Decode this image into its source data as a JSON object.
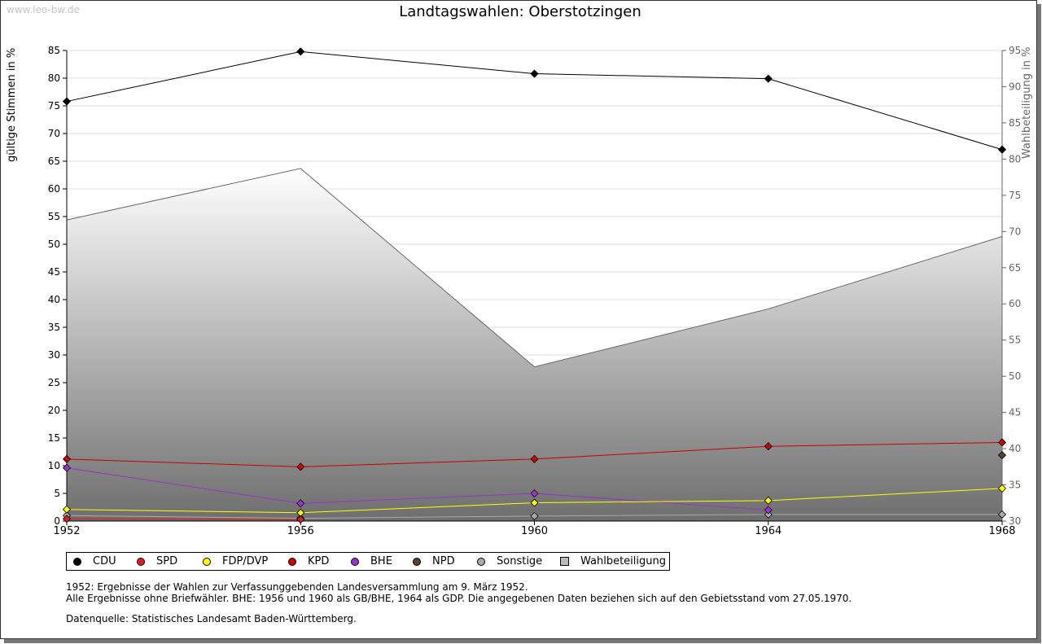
{
  "watermark": "www.leo-bw.de",
  "notes": {
    "line1": "1952: Ergebnisse der Wahlen zur Verfassunggebenden Landesversammlung am 9. März 1952.",
    "line2": "Alle Ergebnisse ohne Briefwähler. BHE: 1956 und 1960 als GB/BHE, 1964 als GDP. Die angegebenen Daten beziehen sich auf den Gebietsstand vom 27.05.1970.",
    "source": "Datenquelle: Statistisches Landesamt Baden-Württemberg."
  },
  "chart_data": {
    "type": "line",
    "title": "Landtagswahlen: Oberstotzingen",
    "ylabel": "gültige Stimmen in %",
    "y2label": "Wahlbeteiligung in %",
    "x": [
      1952,
      1956,
      1960,
      1964,
      1968
    ],
    "ylim": [
      0,
      85
    ],
    "yticks": [
      0,
      5,
      10,
      15,
      20,
      25,
      30,
      35,
      40,
      45,
      50,
      55,
      60,
      65,
      70,
      75,
      80,
      85
    ],
    "y2lim": [
      30,
      95
    ],
    "y2ticks": [
      30,
      35,
      40,
      45,
      50,
      55,
      60,
      65,
      70,
      75,
      80,
      85,
      90,
      95
    ],
    "grid": true,
    "legend_position": "bottom",
    "series": [
      {
        "name": "CDU",
        "color": "#000000",
        "values": [
          75.8,
          84.8,
          80.8,
          79.9,
          67.1
        ]
      },
      {
        "name": "SPD",
        "color": "#e41a1c",
        "values": [
          0.4,
          0.3,
          null,
          null,
          null
        ]
      },
      {
        "name": "FDP/DVP",
        "color": "#ffff00",
        "values": [
          2.1,
          1.5,
          3.3,
          3.7,
          5.9
        ]
      },
      {
        "name": "KPD",
        "color": "#cc0000",
        "values": [
          11.2,
          9.8,
          11.2,
          13.5,
          14.2
        ]
      },
      {
        "name": "BHE",
        "color": "#9933cc",
        "values": [
          9.6,
          3.2,
          5.0,
          2.0,
          null
        ]
      },
      {
        "name": "NPD",
        "color": "#5c4033",
        "values": [
          null,
          null,
          null,
          null,
          11.9
        ]
      },
      {
        "name": "Sonstige",
        "color": "#aaaaaa",
        "values": [
          1.0,
          0.5,
          0.9,
          1.2,
          1.2
        ]
      },
      {
        "name": "Wahlbeteiligung",
        "axis": "right",
        "color": "#777777",
        "values": [
          71.6,
          78.7,
          51.3,
          59.3,
          69.3
        ]
      }
    ]
  }
}
